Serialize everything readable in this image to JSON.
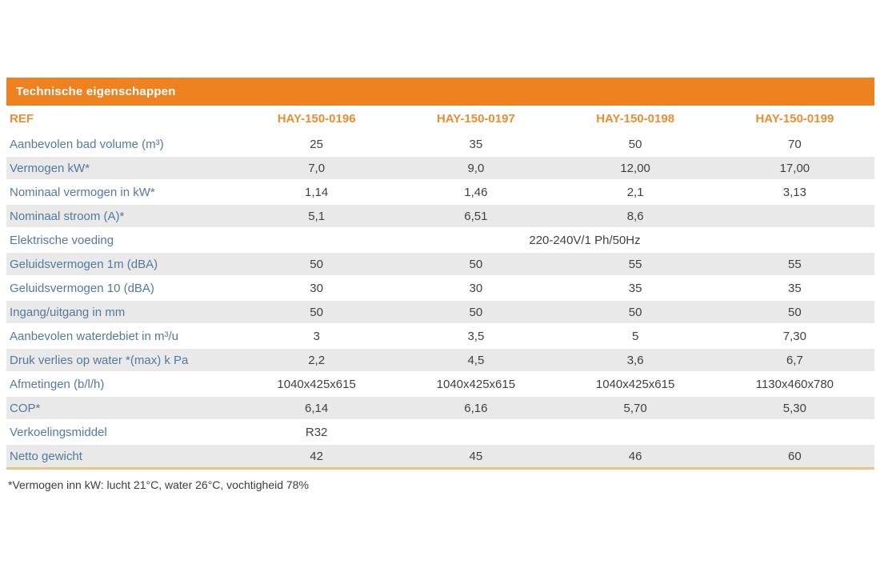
{
  "table": {
    "title": "Technische eigenschappen",
    "ref_label": "REF",
    "columns": [
      "HAY-150-0196",
      "HAY-150-0197",
      "HAY-150-0198",
      "HAY-150-0199"
    ],
    "rows": [
      {
        "label": "Aanbevolen bad volume (m³)",
        "values": [
          "25",
          "35",
          "50",
          "70"
        ]
      },
      {
        "label": "Vermogen kW*",
        "values": [
          "7,0",
          "9,0",
          "12,00",
          "17,00"
        ]
      },
      {
        "label": "Nominaal vermogen in kW*",
        "values": [
          "1,14",
          "1,46",
          "2,1",
          "3,13"
        ]
      },
      {
        "label": "Nominaal stroom (A)*",
        "values": [
          "5,1",
          "6,51",
          "8,6",
          ""
        ]
      },
      {
        "label": "Elektrische voeding",
        "merged_value": "220-240V/1 Ph/50Hz"
      },
      {
        "label": "Geluidsvermogen 1m (dBA)",
        "values": [
          "50",
          "50",
          "55",
          "55"
        ]
      },
      {
        "label": "Geluidsvermogen 10 (dBA)",
        "values": [
          "30",
          "30",
          "35",
          "35"
        ]
      },
      {
        "label": "Ingang/uitgang in mm",
        "values": [
          "50",
          "50",
          "50",
          "50"
        ]
      },
      {
        "label": "Aanbevolen waterdebiet in m³/u",
        "values": [
          "3",
          "3,5",
          "5",
          "7,30"
        ]
      },
      {
        "label": "Druk verlies op water *(max) k Pa",
        "values": [
          "2,2",
          "4,5",
          "3,6",
          "6,7"
        ]
      },
      {
        "label": "Afmetingen (b/l/h)",
        "values": [
          "1040x425x615",
          "1040x425x615",
          "1040x425x615",
          "1130x460x780"
        ]
      },
      {
        "label": "COP*",
        "values": [
          "6,14",
          "6,16",
          "5,70",
          "5,30"
        ]
      },
      {
        "label": "Verkoelingsmiddel",
        "values": [
          "R32",
          "",
          "",
          ""
        ]
      },
      {
        "label": "Netto gewicht",
        "values": [
          "42",
          "45",
          "46",
          "60"
        ]
      }
    ],
    "footnote": "*Vermogen inn kW: lucht 21°C, water 26°C, vochtigheid 78%"
  },
  "colors": {
    "header_bar_orange": "#ee8120",
    "column_header_orange": "#e98d33",
    "row_label_blue": "#53799d",
    "value_text_gray": "#404040",
    "stripe_gray": "#e9e9e9",
    "table_bottom_border_tan": "#ecc18c",
    "title_text_white": "#ffffff"
  }
}
